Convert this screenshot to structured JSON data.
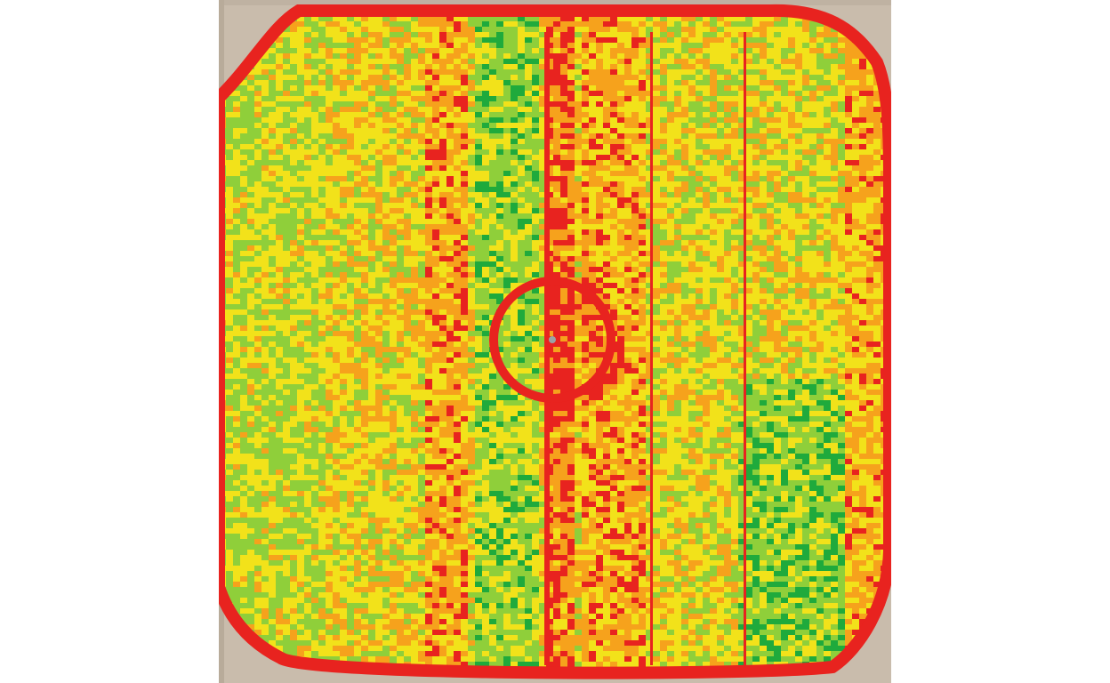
{
  "map": {
    "kind": "yield-heatmap",
    "palette": {
      "high": "#1faa3c",
      "medium_high": "#8fcf3a",
      "medium": "#f2e21a",
      "medium_low": "#f6a21c",
      "low": "#e8231f",
      "background_soil": "#c9bcac",
      "road": "#bfb2a2"
    },
    "features": {
      "pivot_circle": true,
      "harvest_passes_direction": "north-south",
      "tram_lines": 5,
      "pivot_center_marker": true
    }
  }
}
